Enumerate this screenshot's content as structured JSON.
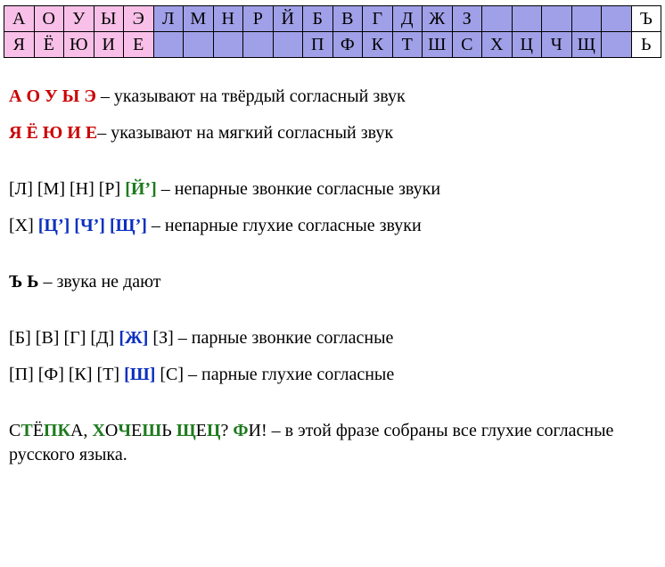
{
  "colors": {
    "pink": "#f8c0e8",
    "violet": "#a0a0e8",
    "white": "#ffffff",
    "red": "#cc0000",
    "green": "#1f7a1f",
    "blue": "#0b2fbf",
    "black": "#000000"
  },
  "table": {
    "cols": 22,
    "rows": [
      [
        {
          "t": "А",
          "bg": "pink"
        },
        {
          "t": "О",
          "bg": "pink"
        },
        {
          "t": "У",
          "bg": "pink"
        },
        {
          "t": "Ы",
          "bg": "pink"
        },
        {
          "t": "Э",
          "bg": "pink"
        },
        {
          "t": "Л",
          "bg": "violet"
        },
        {
          "t": "М",
          "bg": "violet"
        },
        {
          "t": "Н",
          "bg": "violet"
        },
        {
          "t": "Р",
          "bg": "violet"
        },
        {
          "t": "Й",
          "bg": "violet"
        },
        {
          "t": "Б",
          "bg": "violet"
        },
        {
          "t": "В",
          "bg": "violet"
        },
        {
          "t": "Г",
          "bg": "violet"
        },
        {
          "t": "Д",
          "bg": "violet"
        },
        {
          "t": "Ж",
          "bg": "violet"
        },
        {
          "t": "З",
          "bg": "violet"
        },
        {
          "t": "",
          "bg": "violet"
        },
        {
          "t": "",
          "bg": "violet"
        },
        {
          "t": "",
          "bg": "violet"
        },
        {
          "t": "",
          "bg": "violet"
        },
        {
          "t": "",
          "bg": "violet"
        },
        {
          "t": "Ъ",
          "bg": "white"
        }
      ],
      [
        {
          "t": "Я",
          "bg": "pink"
        },
        {
          "t": "Ё",
          "bg": "pink"
        },
        {
          "t": "Ю",
          "bg": "pink"
        },
        {
          "t": "И",
          "bg": "pink"
        },
        {
          "t": "Е",
          "bg": "pink"
        },
        {
          "t": "",
          "bg": "violet"
        },
        {
          "t": "",
          "bg": "violet"
        },
        {
          "t": "",
          "bg": "violet"
        },
        {
          "t": "",
          "bg": "violet"
        },
        {
          "t": "",
          "bg": "violet"
        },
        {
          "t": "П",
          "bg": "violet"
        },
        {
          "t": "Ф",
          "bg": "violet"
        },
        {
          "t": "К",
          "bg": "violet"
        },
        {
          "t": "Т",
          "bg": "violet"
        },
        {
          "t": "Ш",
          "bg": "violet"
        },
        {
          "t": "С",
          "bg": "violet"
        },
        {
          "t": "Х",
          "bg": "violet"
        },
        {
          "t": "Ц",
          "bg": "violet"
        },
        {
          "t": "Ч",
          "bg": "violet"
        },
        {
          "t": "Щ",
          "bg": "violet"
        },
        {
          "t": "",
          "bg": "violet"
        },
        {
          "t": "Ь",
          "bg": "white"
        }
      ]
    ]
  },
  "paragraphs": [
    {
      "gap": false,
      "tokens": [
        {
          "t": "А О  У Ы",
          "c": "red",
          "b": true
        },
        {
          "t": " ",
          "c": "black"
        },
        {
          "t": "Э",
          "c": "red",
          "b": true
        },
        {
          "t": " – указывают на твёрдый согласный звук",
          "c": "black"
        }
      ]
    },
    {
      "gap": false,
      "tokens": [
        {
          "t": "Я Ё  Ю И Е",
          "c": "red",
          "b": true
        },
        {
          "t": "– указывают на мягкий согласный звук",
          "c": "black"
        }
      ]
    },
    {
      "gap": true,
      "tokens": [
        {
          "t": "[Л] [М] [Н] [Р] ",
          "c": "black"
        },
        {
          "t": "[Й’]",
          "c": "green",
          "b": true
        },
        {
          "t": " – непарные звонкие согласные звуки",
          "c": "black"
        }
      ]
    },
    {
      "gap": false,
      "tokens": [
        {
          "t": "[Х] ",
          "c": "black"
        },
        {
          "t": "[Ц’] [Ч’] [Щ’]",
          "c": "blue",
          "b": true
        },
        {
          "t": " – непарные глухие согласные звуки",
          "c": "black"
        }
      ]
    },
    {
      "gap": true,
      "tokens": [
        {
          "t": "Ъ Ь",
          "c": "black",
          "b": true
        },
        {
          "t": " – звука не дают",
          "c": "black"
        }
      ]
    },
    {
      "gap": true,
      "tokens": [
        {
          "t": "[Б] [В] [Г] [Д] ",
          "c": "black"
        },
        {
          "t": "[Ж]",
          "c": "blue",
          "b": true
        },
        {
          "t": " [З] – парные звонкие согласные",
          "c": "black"
        }
      ]
    },
    {
      "gap": false,
      "tokens": [
        {
          "t": "[П] [Ф] [К] [Т] ",
          "c": "black"
        },
        {
          "t": "[Ш]",
          "c": "blue",
          "b": true
        },
        {
          "t": " [С] – парные глухие согласные",
          "c": "black"
        }
      ]
    },
    {
      "gap": true,
      "tokens": [
        {
          "t": "С",
          "c": "black"
        },
        {
          "t": "Т",
          "c": "green",
          "b": true
        },
        {
          "t": "Ё",
          "c": "black"
        },
        {
          "t": "П",
          "c": "green",
          "b": true
        },
        {
          "t": "К",
          "c": "green",
          "b": true
        },
        {
          "t": "А, ",
          "c": "black"
        },
        {
          "t": "Х",
          "c": "green",
          "b": true
        },
        {
          "t": "О",
          "c": "black"
        },
        {
          "t": "Ч",
          "c": "green",
          "b": true
        },
        {
          "t": "Е",
          "c": "black"
        },
        {
          "t": "Ш",
          "c": "green",
          "b": true
        },
        {
          "t": "Ь ",
          "c": "black"
        },
        {
          "t": "Щ",
          "c": "green",
          "b": true
        },
        {
          "t": "Е",
          "c": "black"
        },
        {
          "t": "Ц",
          "c": "green",
          "b": true
        },
        {
          "t": "? ",
          "c": "black"
        },
        {
          "t": "Ф",
          "c": "green",
          "b": true
        },
        {
          "t": "И! ",
          "c": "black"
        },
        {
          "t": "– в этой фразе собраны все глухие согласные русского языка.",
          "c": "black"
        }
      ]
    }
  ]
}
